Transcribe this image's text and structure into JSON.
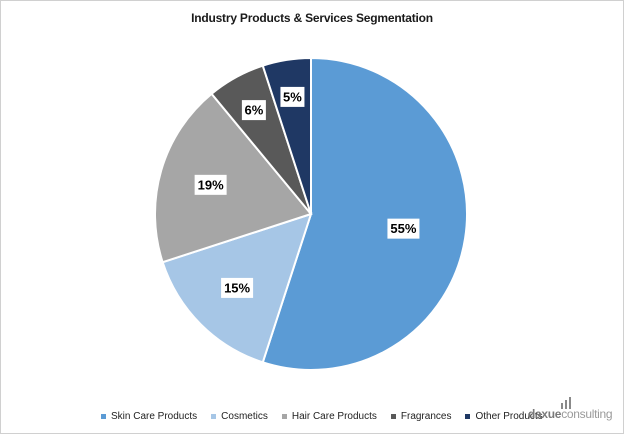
{
  "chart_data": {
    "type": "pie",
    "title": "Industry Products & Services Segmentation",
    "categories": [
      "Skin Care Products",
      "Cosmetics",
      "Hair Care Products",
      "Fragrances",
      "Other Products"
    ],
    "values": [
      55,
      15,
      19,
      6,
      5
    ],
    "data_labels": [
      "55%",
      "15%",
      "19%",
      "6%",
      "5%"
    ],
    "colors": [
      "#5b9bd5",
      "#a6c6e6",
      "#a6a6a6",
      "#595959",
      "#1f3864"
    ],
    "start_angle_deg": 0,
    "direction": "clockwise",
    "legend_position": "bottom"
  },
  "brand": {
    "name_part1": "daxue",
    "name_part2": "consulting"
  }
}
